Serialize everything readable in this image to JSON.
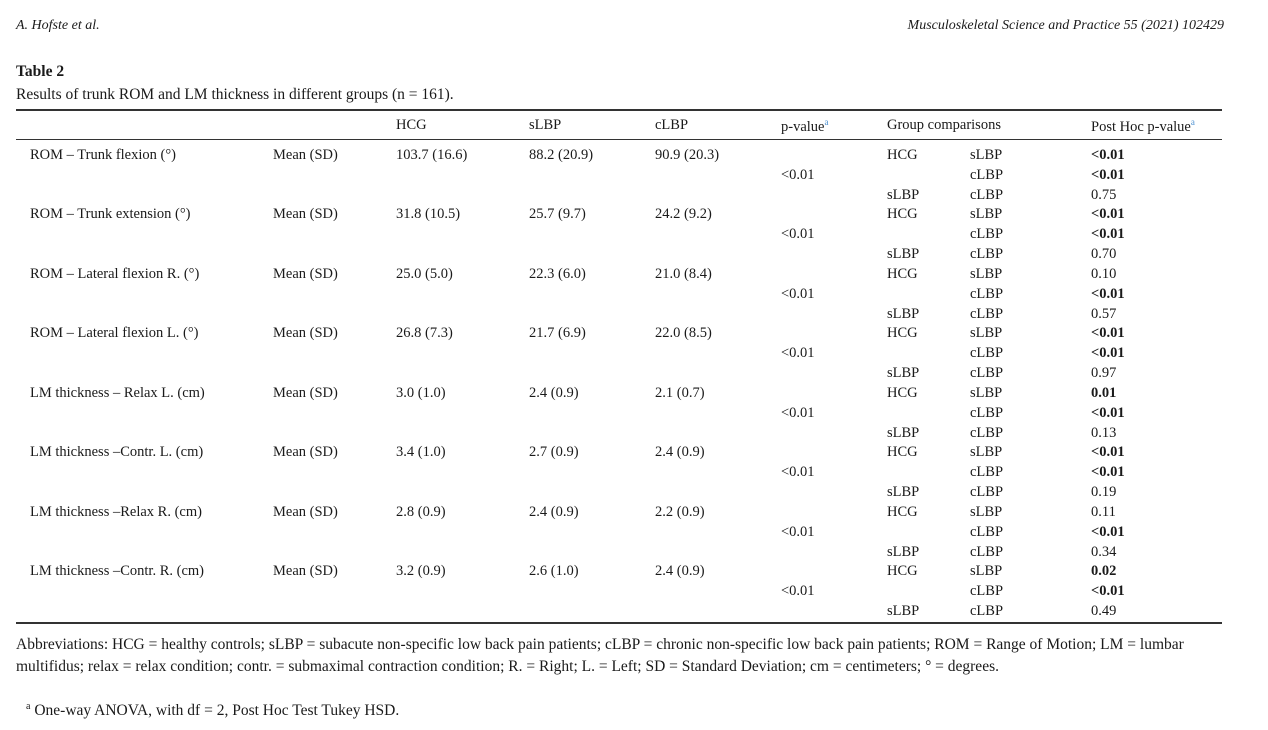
{
  "header": {
    "author": "A. Hofste et al.",
    "journal": "Musculoskeletal Science and Practice 55 (2021) 102429"
  },
  "table": {
    "number": "Table 2",
    "caption": "Results of trunk ROM and LM thickness in different groups (n = 161).",
    "columns": {
      "hcg": "HCG",
      "slbp": "sLBP",
      "clbp": "cLBP",
      "pvalue": "p-value",
      "pvalue_sup": "a",
      "group_comparisons": "Group comparisons",
      "posthoc": "Post Hoc p-value",
      "posthoc_sup": "a"
    },
    "rows": [
      {
        "label": "ROM – Trunk flexion (°)",
        "stat": "Mean (SD)",
        "hcg": "103.7 (16.6)",
        "slbp": "88.2 (20.9)",
        "clbp": "90.9 (20.3)",
        "p": "<0.01",
        "comparisons": [
          {
            "g1": "HCG",
            "g2": "sLBP",
            "p": "<0.01",
            "bold": true
          },
          {
            "g1": "",
            "g2": "cLBP",
            "p": "<0.01",
            "bold": true
          },
          {
            "g1": "sLBP",
            "g2": "cLBP",
            "p": "0.75",
            "bold": false
          }
        ]
      },
      {
        "label": "ROM – Trunk extension (°)",
        "stat": "Mean (SD)",
        "hcg": "31.8 (10.5)",
        "slbp": "25.7 (9.7)",
        "clbp": "24.2 (9.2)",
        "p": "<0.01",
        "comparisons": [
          {
            "g1": "HCG",
            "g2": "sLBP",
            "p": "<0.01",
            "bold": true
          },
          {
            "g1": "",
            "g2": "cLBP",
            "p": "<0.01",
            "bold": true
          },
          {
            "g1": "sLBP",
            "g2": "cLBP",
            "p": "0.70",
            "bold": false
          }
        ]
      },
      {
        "label": "ROM – Lateral flexion R. (°)",
        "stat": "Mean (SD)",
        "hcg": "25.0 (5.0)",
        "slbp": "22.3 (6.0)",
        "clbp": "21.0 (8.4)",
        "p": "<0.01",
        "comparisons": [
          {
            "g1": "HCG",
            "g2": "sLBP",
            "p": "0.10",
            "bold": false
          },
          {
            "g1": "",
            "g2": "cLBP",
            "p": "<0.01",
            "bold": true
          },
          {
            "g1": "sLBP",
            "g2": "cLBP",
            "p": "0.57",
            "bold": false
          }
        ]
      },
      {
        "label": "ROM – Lateral flexion L. (°)",
        "stat": "Mean (SD)",
        "hcg": "26.8 (7.3)",
        "slbp": "21.7 (6.9)",
        "clbp": "22.0 (8.5)",
        "p": "<0.01",
        "comparisons": [
          {
            "g1": "HCG",
            "g2": "sLBP",
            "p": "<0.01",
            "bold": true
          },
          {
            "g1": "",
            "g2": "cLBP",
            "p": "<0.01",
            "bold": true
          },
          {
            "g1": "sLBP",
            "g2": "cLBP",
            "p": "0.97",
            "bold": false
          }
        ]
      },
      {
        "label": "LM thickness – Relax L. (cm)",
        "stat": "Mean (SD)",
        "hcg": "3.0 (1.0)",
        "slbp": "2.4 (0.9)",
        "clbp": "2.1 (0.7)",
        "p": "<0.01",
        "comparisons": [
          {
            "g1": "HCG",
            "g2": "sLBP",
            "p": "0.01",
            "bold": true
          },
          {
            "g1": "",
            "g2": "cLBP",
            "p": "<0.01",
            "bold": true
          },
          {
            "g1": "sLBP",
            "g2": "cLBP",
            "p": "0.13",
            "bold": false
          }
        ]
      },
      {
        "label": "LM thickness –Contr. L. (cm)",
        "stat": "Mean (SD)",
        "hcg": "3.4 (1.0)",
        "slbp": "2.7 (0.9)",
        "clbp": "2.4 (0.9)",
        "p": "<0.01",
        "comparisons": [
          {
            "g1": "HCG",
            "g2": "sLBP",
            "p": "<0.01",
            "bold": true
          },
          {
            "g1": "",
            "g2": "cLBP",
            "p": "<0.01",
            "bold": true
          },
          {
            "g1": "sLBP",
            "g2": "cLBP",
            "p": "0.19",
            "bold": false
          }
        ]
      },
      {
        "label": "LM thickness –Relax R. (cm)",
        "stat": "Mean (SD)",
        "hcg": "2.8 (0.9)",
        "slbp": "2.4 (0.9)",
        "clbp": "2.2 (0.9)",
        "p": "<0.01",
        "comparisons": [
          {
            "g1": "HCG",
            "g2": "sLBP",
            "p": "0.11",
            "bold": false
          },
          {
            "g1": "",
            "g2": "cLBP",
            "p": "<0.01",
            "bold": true
          },
          {
            "g1": "sLBP",
            "g2": "cLBP",
            "p": "0.34",
            "bold": false
          }
        ]
      },
      {
        "label": "LM thickness –Contr. R. (cm)",
        "stat": "Mean (SD)",
        "hcg": "3.2 (0.9)",
        "slbp": "2.6 (1.0)",
        "clbp": "2.4 (0.9)",
        "p": "<0.01",
        "comparisons": [
          {
            "g1": "HCG",
            "g2": "sLBP",
            "p": "0.02",
            "bold": true
          },
          {
            "g1": "",
            "g2": "cLBP",
            "p": "<0.01",
            "bold": true
          },
          {
            "g1": "sLBP",
            "g2": "cLBP",
            "p": "0.49",
            "bold": false
          }
        ]
      }
    ],
    "abbreviations": "Abbreviations: HCG = healthy controls; sLBP = subacute non-specific low back pain patients; cLBP = chronic non-specific low back pain patients; ROM = Range of Motion; LM = lumbar multifidus; relax = relax condition; contr. = submaximal contraction condition; R. = Right; L. = Left; SD = Standard Deviation; cm = centimeters; ° = degrees.",
    "footnote_marker": "a",
    "footnote": "One-way ANOVA, with df = 2, Post Hoc Test Tukey HSD."
  }
}
